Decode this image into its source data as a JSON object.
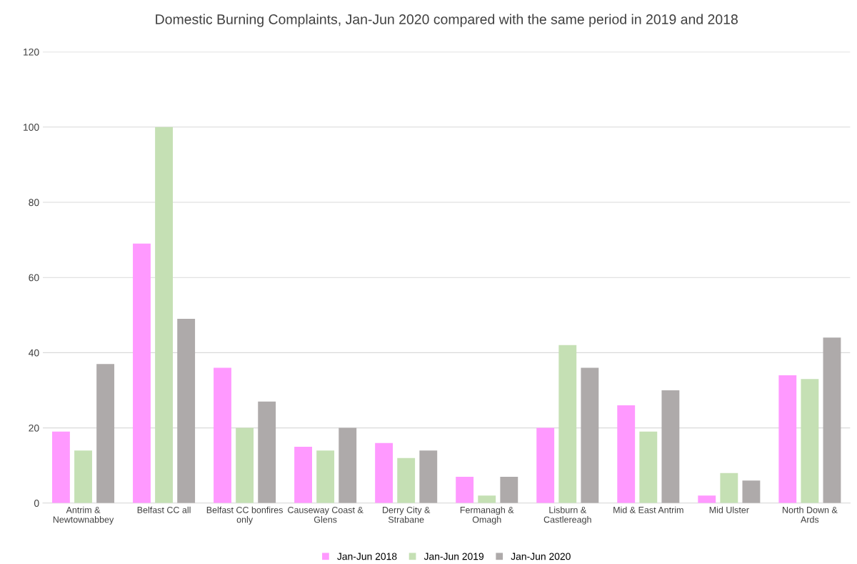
{
  "chart_data": {
    "type": "bar",
    "title": "Domestic Burning Complaints, Jan-Jun 2020 compared with the same period in 2019 and 2018",
    "categories": [
      "Antrim &\nNewtownabbey",
      "Belfast CC all",
      "Belfast CC bonfires\nonly",
      "Causeway Coast &\nGlens",
      "Derry City &\nStrabane",
      "Fermanagh &\nOmagh",
      "Lisburn &\nCastlereagh",
      "Mid & East Antrim",
      "Mid Ulster",
      "North Down &\nArds"
    ],
    "series": [
      {
        "name": "Jan-Jun 2018",
        "color": "#ff99ff",
        "values": [
          19,
          69,
          36,
          15,
          16,
          7,
          20,
          26,
          2,
          34
        ]
      },
      {
        "name": "Jan-Jun 2019",
        "color": "#c5e0b4",
        "values": [
          14,
          100,
          20,
          14,
          12,
          2,
          42,
          19,
          8,
          33
        ]
      },
      {
        "name": "Jan-Jun 2020",
        "color": "#aeaaaa",
        "values": [
          37,
          49,
          27,
          20,
          14,
          7,
          36,
          30,
          6,
          44
        ]
      }
    ],
    "ylim": [
      0,
      120
    ],
    "yticks": [
      0,
      20,
      40,
      60,
      80,
      100,
      120
    ],
    "grid": "y",
    "legend": "bottom"
  }
}
